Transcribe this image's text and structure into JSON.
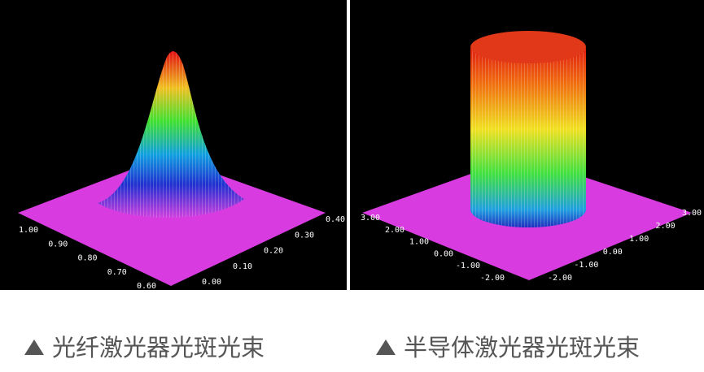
{
  "panels": [
    {
      "left_axis_ticks": [
        "1.00",
        "0.90",
        "0.80",
        "0.70",
        "0.60"
      ],
      "right_axis_ticks": [
        "0.00",
        "0.10",
        "0.20",
        "0.30",
        "0.40"
      ],
      "caption": "光纤激光器光斑光束"
    },
    {
      "left_axis_ticks": [
        "3.00",
        "2.00",
        "1.00",
        "0.00",
        "-1.00",
        "-2.00"
      ],
      "right_axis_ticks": [
        "-2.00",
        "-1.00",
        "0.00",
        "1.00",
        "2.00",
        "3.00"
      ],
      "caption": "半导体激光器光斑光束"
    }
  ]
}
